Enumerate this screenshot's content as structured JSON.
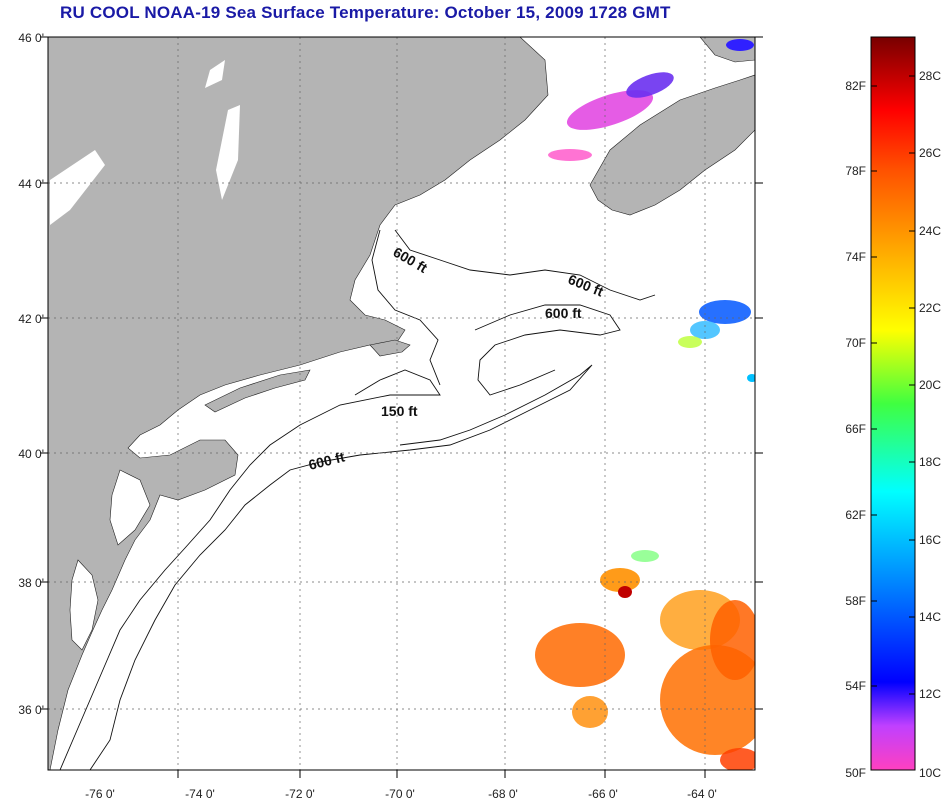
{
  "title": "RU COOL  NOAA-19  Sea Surface Temperature:  October 15, 2009 1728 GMT",
  "lat_labels": [
    "46 0'",
    "44 0'",
    "42 0'",
    "40 0'",
    "38 0'",
    "36 0'"
  ],
  "lon_labels": [
    "-76 0'",
    "-74 0'",
    "-72 0'",
    "-70 0'",
    "-68 0'",
    "-66 0'",
    "-64 0'"
  ],
  "contour_labels": [
    {
      "text": "600 ft"
    },
    {
      "text": "600 ft"
    },
    {
      "text": "600 ft"
    },
    {
      "text": "150 ft"
    },
    {
      "text": "600 ft"
    }
  ],
  "colorbar": {
    "fahrenheit_labels": [
      "82F",
      "78F",
      "74F",
      "70F",
      "66F",
      "62F",
      "58F",
      "54F",
      "50F"
    ],
    "celsius_labels": [
      "28C",
      "26C",
      "24C",
      "22C",
      "20C",
      "18C",
      "16C",
      "14C",
      "12C",
      "10C"
    ],
    "colors": [
      "#7a0000",
      "#ff0000",
      "#ff8c00",
      "#ffff00",
      "#7fff00",
      "#00ffff",
      "#0080ff",
      "#0000ff",
      "#8000ff",
      "#ff40c0"
    ]
  },
  "colors": {
    "land": "#b4b4b4",
    "ocean": "#ffffff",
    "title": "#1a1aa6"
  }
}
